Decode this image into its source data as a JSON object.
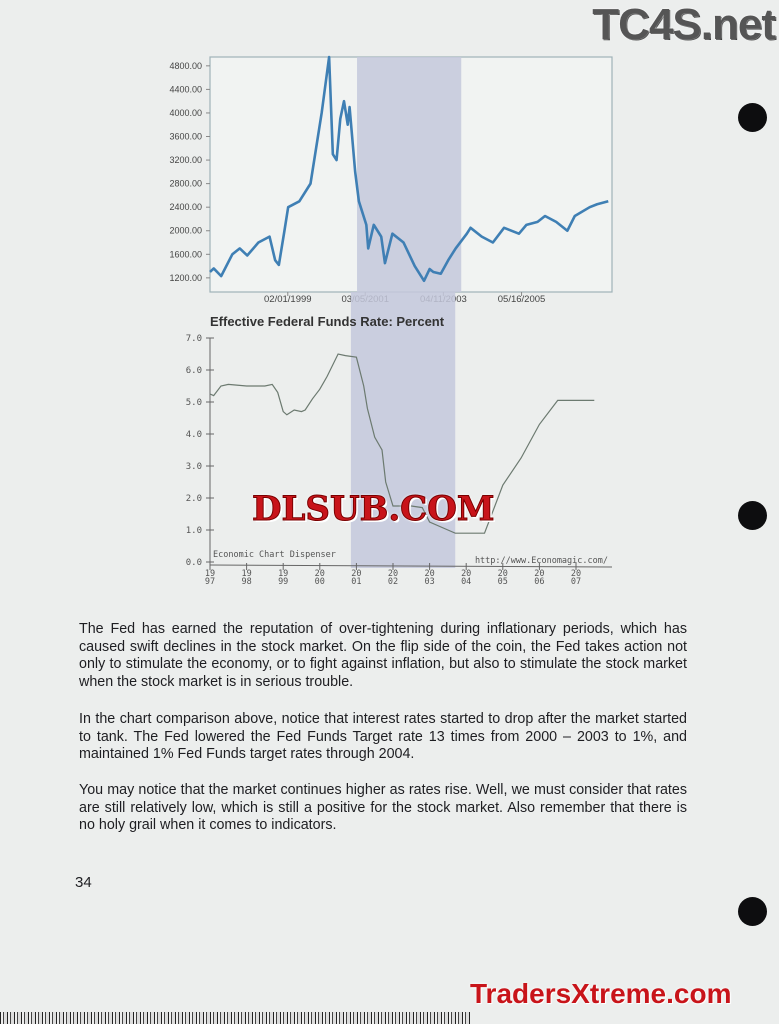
{
  "logos": {
    "top_right": "TC4S.net",
    "center": "DLSUB.COM",
    "bottom_right": "TradersXtreme.com"
  },
  "colors": {
    "nasdaq_line": "#3f7fb4",
    "fed_line": "#6c7a70",
    "shade": "#c4c8dc"
  },
  "chart_data": [
    {
      "type": "line",
      "title": "",
      "ytick_labels": [
        "1200.00",
        "1600.00",
        "2000.00",
        "2400.00",
        "2800.00",
        "3200.00",
        "3600.00",
        "4000.00",
        "4400.00",
        "4800.00"
      ],
      "yticks": [
        1200,
        1600,
        2000,
        2400,
        2800,
        3200,
        3600,
        4000,
        4400,
        4800
      ],
      "xtick_labels": [
        "02/01/1999",
        "03/05/2001",
        "04/11/2003",
        "05/16/2005"
      ],
      "xticks": [
        1999.09,
        2001.17,
        2003.27,
        2005.37
      ],
      "xlim": [
        1997.0,
        2007.8
      ],
      "ylim": [
        960,
        4950
      ],
      "shaded_range": [
        2000.95,
        2003.75
      ],
      "series": [
        {
          "x": [
            1997.0,
            1997.1,
            1997.3,
            1997.6,
            1997.8,
            1998.0,
            1998.3,
            1998.6,
            1998.75,
            1998.85,
            1999.0,
            1999.1,
            1999.4,
            1999.7,
            1999.9,
            2000.0,
            2000.2,
            2000.3,
            2000.4,
            2000.5,
            2000.6,
            2000.7,
            2000.75,
            2000.9,
            2001.0,
            2001.2,
            2001.25,
            2001.4,
            2001.6,
            2001.7,
            2001.9,
            2002.2,
            2002.5,
            2002.75,
            2002.9,
            2003.0,
            2003.2,
            2003.4,
            2003.6,
            2003.9,
            2004.0,
            2004.3,
            2004.6,
            2004.9,
            2005.3,
            2005.5,
            2005.8,
            2006.0,
            2006.3,
            2006.6,
            2006.8,
            2007.2,
            2007.4,
            2007.7
          ],
          "values": [
            1300,
            1360,
            1230,
            1600,
            1700,
            1580,
            1800,
            1900,
            1500,
            1420,
            2000,
            2400,
            2500,
            2800,
            3600,
            4000,
            4950,
            3300,
            3200,
            3900,
            4200,
            3800,
            4100,
            3000,
            2500,
            2100,
            1700,
            2100,
            1900,
            1450,
            1950,
            1800,
            1400,
            1150,
            1350,
            1300,
            1270,
            1500,
            1700,
            1950,
            2050,
            1900,
            1800,
            2050,
            1950,
            2100,
            2150,
            2250,
            2150,
            2000,
            2250,
            2400,
            2450,
            2500
          ]
        }
      ]
    },
    {
      "type": "line",
      "title": "Effective Federal Funds Rate: Percent",
      "ytick_labels": [
        "0.0",
        "1.0",
        "2.0",
        "3.0",
        "4.0",
        "5.0",
        "6.0",
        "7.0"
      ],
      "yticks": [
        0,
        1,
        2,
        3,
        4,
        5,
        6,
        7
      ],
      "xtick_labels": [
        [
          "19",
          "97"
        ],
        [
          "19",
          "98"
        ],
        [
          "19",
          "99"
        ],
        [
          "20",
          "00"
        ],
        [
          "20",
          "01"
        ],
        [
          "20",
          "02"
        ],
        [
          "20",
          "03"
        ],
        [
          "20",
          "04"
        ],
        [
          "20",
          "05"
        ],
        [
          "20",
          "06"
        ],
        [
          "20",
          "07"
        ]
      ],
      "xticks": [
        1997,
        1998,
        1999,
        2000,
        2001,
        2002,
        2003,
        2004,
        2005,
        2006,
        2007
      ],
      "xlim": [
        1997,
        2008.2
      ],
      "ylim": [
        0,
        7
      ],
      "shaded_range": [
        2000.85,
        2003.7
      ],
      "annotations": [
        "Economic Chart Dispenser",
        "http://www.Economagic.com/"
      ],
      "series": [
        {
          "x": [
            1997.0,
            1997.1,
            1997.3,
            1997.5,
            1998.0,
            1998.5,
            1998.7,
            1998.85,
            1999.0,
            1999.1,
            1999.3,
            1999.5,
            1999.6,
            1999.8,
            2000.0,
            2000.2,
            2000.5,
            2000.7,
            2001.0,
            2001.2,
            2001.3,
            2001.5,
            2001.7,
            2001.8,
            2002.0,
            2002.5,
            2002.8,
            2003.0,
            2003.5,
            2003.7,
            2004.0,
            2004.5,
            2004.7,
            2005.0,
            2005.5,
            2006.0,
            2006.5,
            2007.0,
            2007.5
          ],
          "values": [
            5.25,
            5.2,
            5.5,
            5.55,
            5.5,
            5.5,
            5.55,
            5.3,
            4.7,
            4.6,
            4.75,
            4.7,
            4.75,
            5.1,
            5.4,
            5.8,
            6.5,
            6.45,
            6.4,
            5.5,
            4.8,
            3.9,
            3.5,
            2.5,
            1.75,
            1.75,
            1.7,
            1.25,
            1.0,
            0.9,
            0.9,
            0.9,
            1.5,
            2.4,
            3.25,
            4.3,
            5.05,
            5.05,
            5.05
          ]
        }
      ]
    }
  ],
  "paragraphs": [
    "The Fed has earned the reputation of over-tightening during inflationary periods, which has caused swift declines in the stock market.  On the flip side of the coin, the Fed takes action not only to stimulate the economy, or to fight against inflation, but also to stimulate the stock market when the stock market is in serious trouble.",
    "In the chart comparison above, notice that interest rates started to drop after the market started to tank.  The Fed lowered the Fed Funds Target rate 13 times from 2000 – 2003 to 1%, and maintained 1% Fed Funds target rates through 2004.",
    "You may notice that the market continues higher as rates rise.  Well, we must consider that rates are still relatively low, which is still a positive for the stock market.  Also remember that there is no holy grail when it comes to indicators."
  ],
  "page_number": "34"
}
